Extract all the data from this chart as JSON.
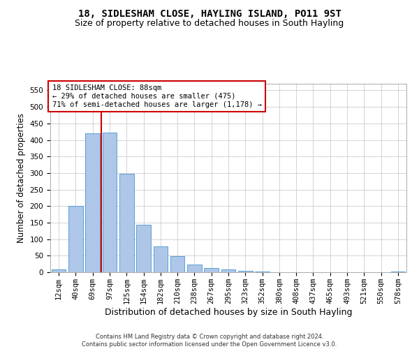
{
  "title": "18, SIDLESHAM CLOSE, HAYLING ISLAND, PO11 9ST",
  "subtitle": "Size of property relative to detached houses in South Hayling",
  "xlabel": "Distribution of detached houses by size in South Hayling",
  "ylabel": "Number of detached properties",
  "footer_line1": "Contains HM Land Registry data © Crown copyright and database right 2024.",
  "footer_line2": "Contains public sector information licensed under the Open Government Licence v3.0.",
  "categories": [
    "12sqm",
    "40sqm",
    "69sqm",
    "97sqm",
    "125sqm",
    "154sqm",
    "182sqm",
    "210sqm",
    "238sqm",
    "267sqm",
    "295sqm",
    "323sqm",
    "352sqm",
    "380sqm",
    "408sqm",
    "437sqm",
    "465sqm",
    "493sqm",
    "521sqm",
    "550sqm",
    "578sqm"
  ],
  "values": [
    8,
    200,
    420,
    422,
    298,
    143,
    78,
    48,
    23,
    12,
    8,
    5,
    3,
    1,
    1,
    0,
    0,
    0,
    0,
    0,
    3
  ],
  "bar_color": "#aec6e8",
  "bar_edge_color": "#5a9fd4",
  "vline_x": 2.5,
  "vline_color": "#cc0000",
  "annotation_text": "18 SIDLESHAM CLOSE: 88sqm\n← 29% of detached houses are smaller (475)\n71% of semi-detached houses are larger (1,178) →",
  "annotation_box_color": "#ffffff",
  "annotation_box_edge": "#cc0000",
  "ylim": [
    0,
    570
  ],
  "yticks": [
    0,
    50,
    100,
    150,
    200,
    250,
    300,
    350,
    400,
    450,
    500,
    550
  ],
  "title_fontsize": 10,
  "subtitle_fontsize": 9,
  "xlabel_fontsize": 9,
  "ylabel_fontsize": 8.5,
  "tick_fontsize": 7.5,
  "annotation_fontsize": 7.5,
  "footer_fontsize": 6,
  "background_color": "#ffffff",
  "grid_color": "#cccccc"
}
